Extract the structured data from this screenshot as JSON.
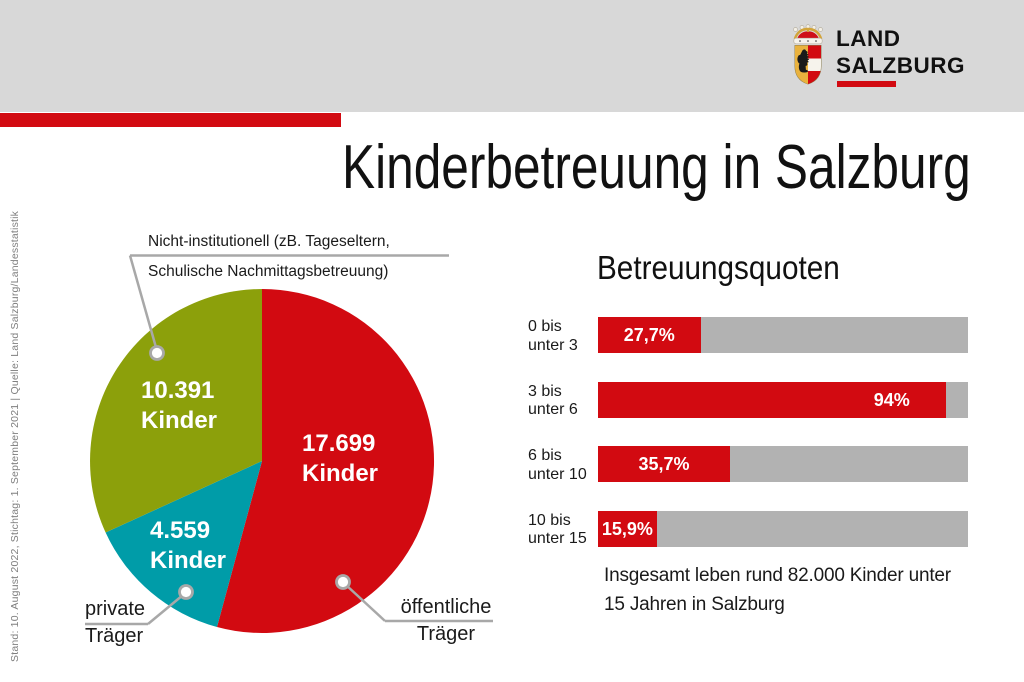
{
  "title": "Kinderbetreuung in Salzburg",
  "meta": {
    "side_note": "Stand: 10. August 2022, Stichtag: 1. September 2021 | Quelle: Land Salzburg/Landesstatistik"
  },
  "header": {
    "logo": {
      "line1": "LAND",
      "line2": "SALZBURG"
    }
  },
  "colors": {
    "accent_red": "#d20a11",
    "pie_green": "#8ca00b",
    "pie_teal": "#009ca8",
    "bar_track_gray": "#b2b2b2",
    "header_gray": "#d8d8d8",
    "line_gray": "#a8a8a8",
    "side_note_gray": "#7f7f7f"
  },
  "chart_data": [
    {
      "type": "pie",
      "title": "",
      "slices": [
        {
          "label": "öffentliche Träger",
          "value": 17699,
          "value_label": "17.699",
          "unit": "Kinder",
          "color": "#d20a11"
        },
        {
          "label": "private Träger",
          "value": 4559,
          "value_label": "4.559",
          "unit": "Kinder",
          "color": "#009ca8"
        },
        {
          "label": "Nicht-institutionell (zB. Tageseltern, Schulische Nachmittagsbetreuung)",
          "value": 10391,
          "value_label": "10.391",
          "unit": "Kinder",
          "color": "#8ca00b"
        }
      ],
      "start_angle_deg": 0,
      "direction": "clockwise",
      "callouts": {
        "top_lines": [
          "Nicht-institutionell (zB. Tageseltern,",
          "Schulische Nachmittagsbetreuung)"
        ],
        "bottom_left_lines": [
          "private",
          "Träger"
        ],
        "bottom_right_lines": [
          "öffentliche",
          "Träger"
        ]
      }
    },
    {
      "type": "bar",
      "orientation": "horizontal",
      "title": "Betreuungsquoten",
      "categories": [
        "0 bis unter 3",
        "3 bis unter 6",
        "6 bis unter 10",
        "10 bis unter 15"
      ],
      "category_lines": [
        [
          "0 bis",
          "unter 3"
        ],
        [
          "3 bis",
          "unter 6"
        ],
        [
          "6 bis",
          "unter 10"
        ],
        [
          "10 bis",
          "unter 15"
        ]
      ],
      "values": [
        27.7,
        94,
        35.7,
        15.9
      ],
      "value_labels": [
        "27,7%",
        "94%",
        "35,7%",
        "15,9%"
      ],
      "xlim": [
        0,
        100
      ],
      "bar_color": "#d20a11",
      "track_color": "#b2b2b2",
      "note": "Insgesamt leben rund 82.000 Kinder unter 15 Jahren in Salzburg",
      "note_lines": [
        "Insgesamt leben rund 82.000 Kinder unter",
        "15 Jahren in Salzburg"
      ]
    }
  ]
}
